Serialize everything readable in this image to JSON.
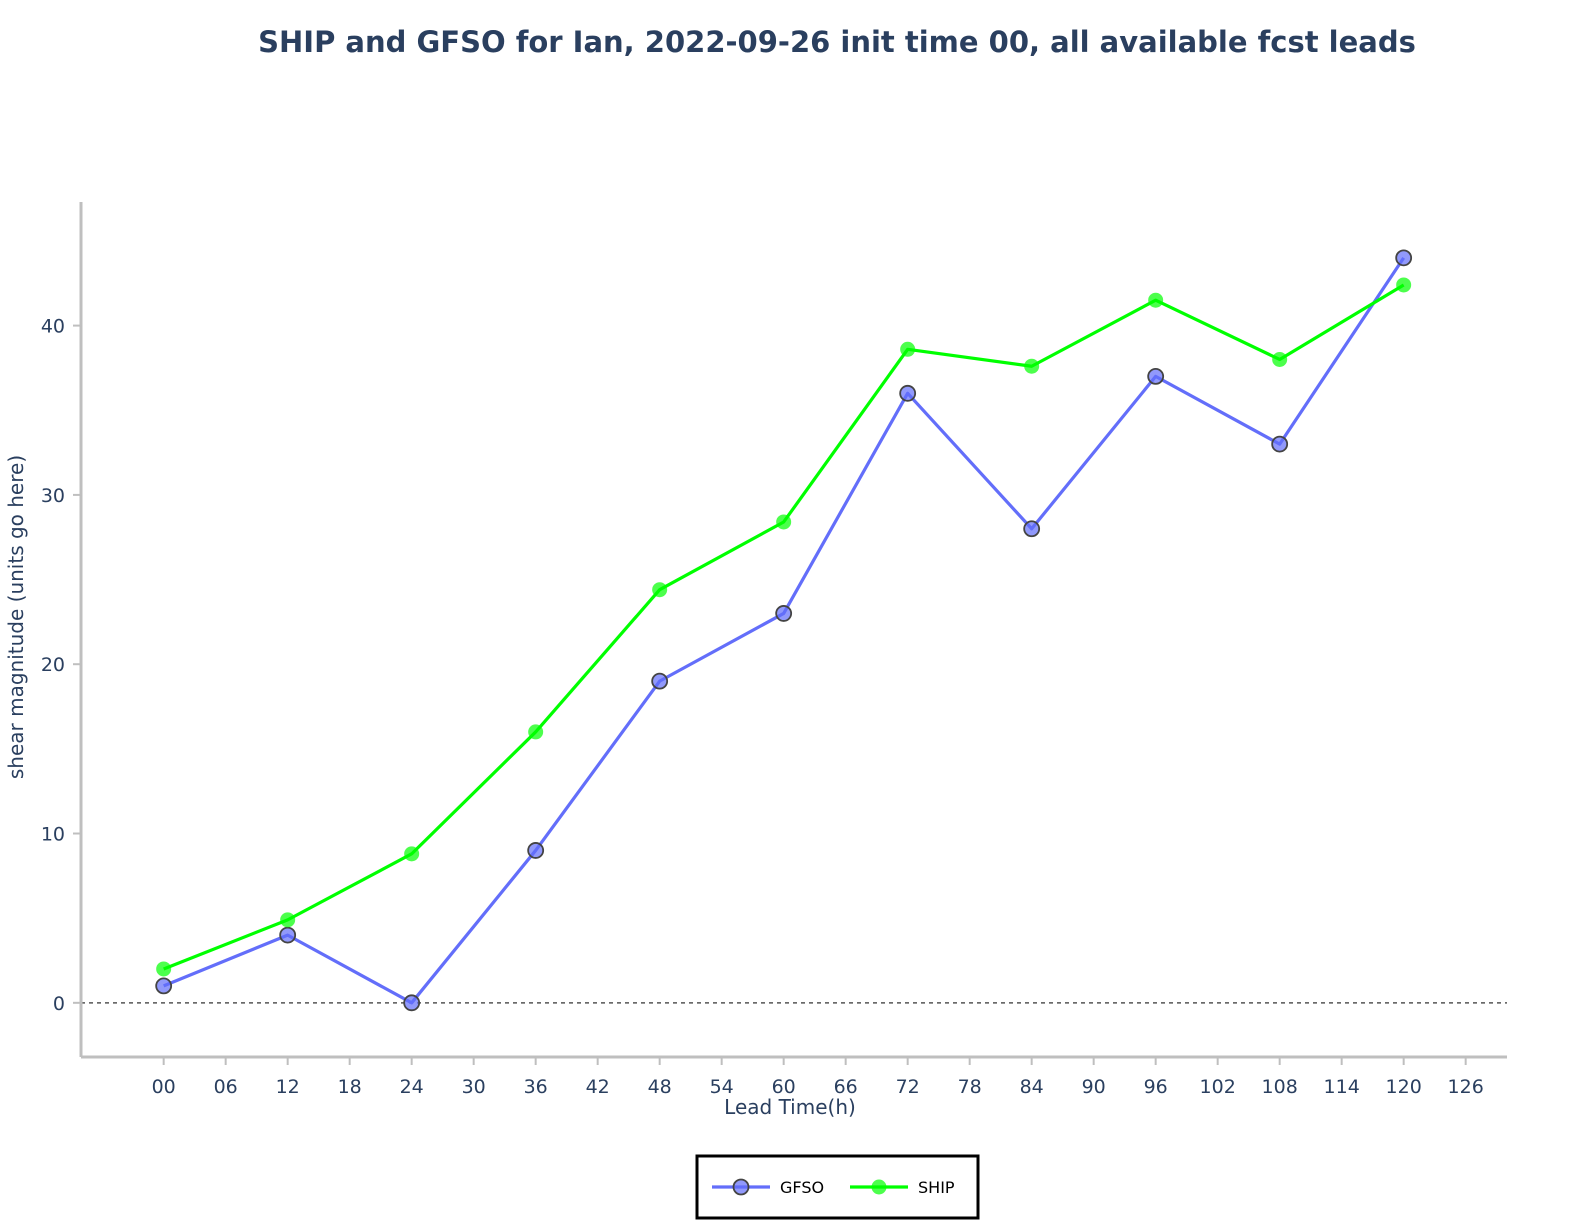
{
  "chart_data": {
    "type": "line",
    "title": "SHIP and GFSO for Ian, 2022-09-26 init time 00, all available fcst leads",
    "xlabel": "Lead Time(h)",
    "ylabel": "shear magnitude (units go here)",
    "x_ticks": [
      "00",
      "06",
      "12",
      "18",
      "24",
      "30",
      "36",
      "42",
      "48",
      "54",
      "60",
      "66",
      "72",
      "78",
      "84",
      "90",
      "96",
      "102",
      "108",
      "114",
      "120",
      "126"
    ],
    "y_ticks": [
      0,
      10,
      20,
      30,
      40
    ],
    "xlim": [
      -8,
      130
    ],
    "ylim": [
      -3.2,
      47.3
    ],
    "zero_line": true,
    "grid": false,
    "legend_position": "bottom-center",
    "series": [
      {
        "name": "GFSO",
        "color": "#636efa",
        "x": [
          0,
          12,
          24,
          36,
          48,
          60,
          72,
          84,
          96,
          108,
          120
        ],
        "y": [
          1,
          4,
          0,
          9,
          19,
          23,
          36,
          28,
          37,
          33,
          44
        ]
      },
      {
        "name": "SHIP",
        "color": "#00ff00",
        "x": [
          0,
          12,
          24,
          36,
          48,
          60,
          72,
          84,
          96,
          108,
          120
        ],
        "y": [
          2,
          4.9,
          8.8,
          16,
          24.4,
          28.4,
          38.6,
          37.6,
          41.5,
          38,
          42.4
        ]
      }
    ]
  }
}
